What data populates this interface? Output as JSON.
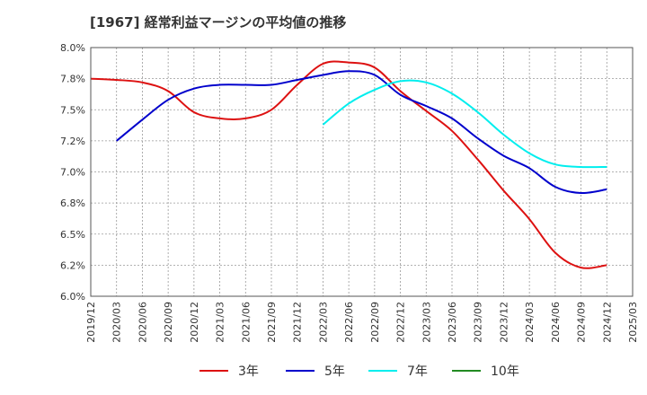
{
  "chart_data": {
    "type": "line",
    "title": "[1967]  経常利益マージンの平均値の推移",
    "xlabel": "",
    "ylabel": "",
    "ylim": [
      6.0,
      8.0
    ],
    "y_ticks": [
      "8.0%",
      "7.8%",
      "7.5%",
      "7.2%",
      "7.0%",
      "6.8%",
      "6.5%",
      "6.2%",
      "6.0%"
    ],
    "x_ticks": [
      "2019/12",
      "2020/03",
      "2020/06",
      "2020/09",
      "2020/12",
      "2021/03",
      "2021/06",
      "2021/09",
      "2021/12",
      "2022/03",
      "2022/06",
      "2022/09",
      "2022/12",
      "2023/03",
      "2023/06",
      "2023/09",
      "2023/12",
      "2024/03",
      "2024/06",
      "2024/09",
      "2024/12",
      "2025/03"
    ],
    "grid": true,
    "legend_position": "bottom",
    "series": [
      {
        "name": "3年",
        "color": "#dd1111",
        "start_index": 0,
        "values": [
          7.75,
          7.74,
          7.72,
          7.65,
          7.48,
          7.43,
          7.43,
          7.5,
          7.7,
          7.87,
          7.88,
          7.84,
          7.65,
          7.49,
          7.33,
          7.1,
          6.85,
          6.62,
          6.35,
          6.23,
          6.25
        ]
      },
      {
        "name": "5年",
        "color": "#0000cc",
        "start_index": 1,
        "values": [
          7.25,
          7.42,
          7.58,
          7.67,
          7.7,
          7.7,
          7.7,
          7.74,
          7.78,
          7.81,
          7.78,
          7.62,
          7.53,
          7.43,
          7.27,
          7.13,
          7.03,
          6.88,
          6.83,
          6.86
        ]
      },
      {
        "name": "7年",
        "color": "#00eeee",
        "start_index": 9,
        "values": [
          7.38,
          7.55,
          7.66,
          7.73,
          7.72,
          7.63,
          7.48,
          7.3,
          7.15,
          7.06,
          7.04,
          7.04
        ]
      },
      {
        "name": "10年",
        "color": "#228b22",
        "start_index": 0,
        "values": []
      }
    ]
  }
}
